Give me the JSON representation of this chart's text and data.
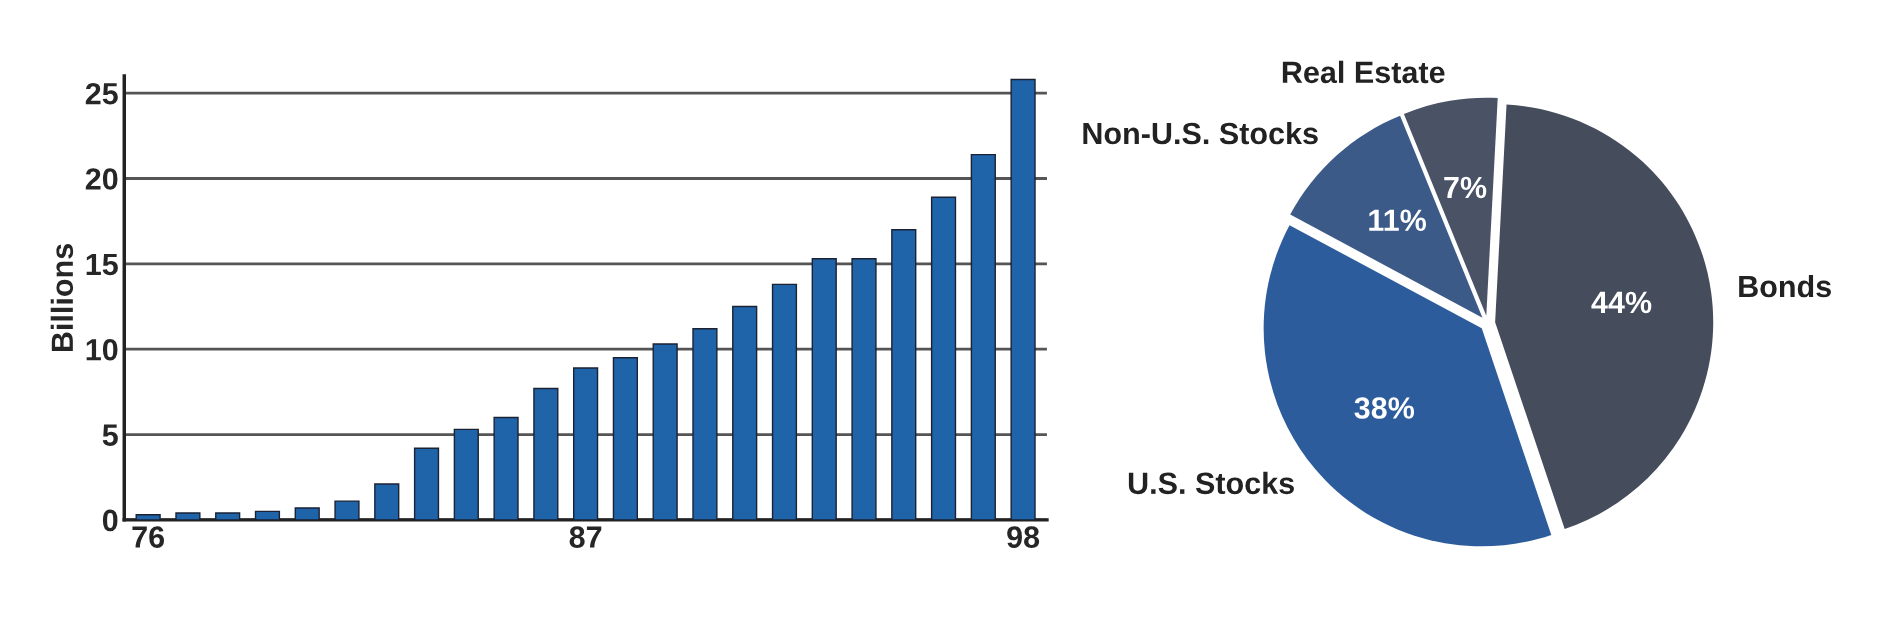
{
  "chart_data": [
    {
      "type": "bar",
      "ylabel": "Billions",
      "categories": [
        "76",
        null,
        null,
        null,
        null,
        null,
        null,
        null,
        null,
        null,
        null,
        "87",
        null,
        null,
        null,
        null,
        null,
        null,
        null,
        null,
        null,
        null,
        "98"
      ],
      "values": [
        0.3,
        0.4,
        0.4,
        0.5,
        0.7,
        1.1,
        2.1,
        4.2,
        5.3,
        6.0,
        7.7,
        8.9,
        9.5,
        10.3,
        11.2,
        12.5,
        13.8,
        15.3,
        15.3,
        17.0,
        18.9,
        21.4,
        25.8
      ],
      "color": "#1f63a8",
      "ylim": [
        0,
        26
      ],
      "yticks": [
        0,
        5,
        10,
        15,
        20,
        25
      ],
      "grid": "y"
    },
    {
      "type": "pie",
      "categories": [
        "Bonds",
        "U.S. Stocks",
        "Non-U.S. Stocks",
        "Real Estate"
      ],
      "values": [
        44,
        38,
        11,
        7
      ],
      "value_labels": [
        "44%",
        "38%",
        "11%",
        "7%"
      ],
      "colors": [
        "#454c5c",
        "#2d5c9c",
        "#3b5a88",
        "#4a5266"
      ]
    }
  ]
}
